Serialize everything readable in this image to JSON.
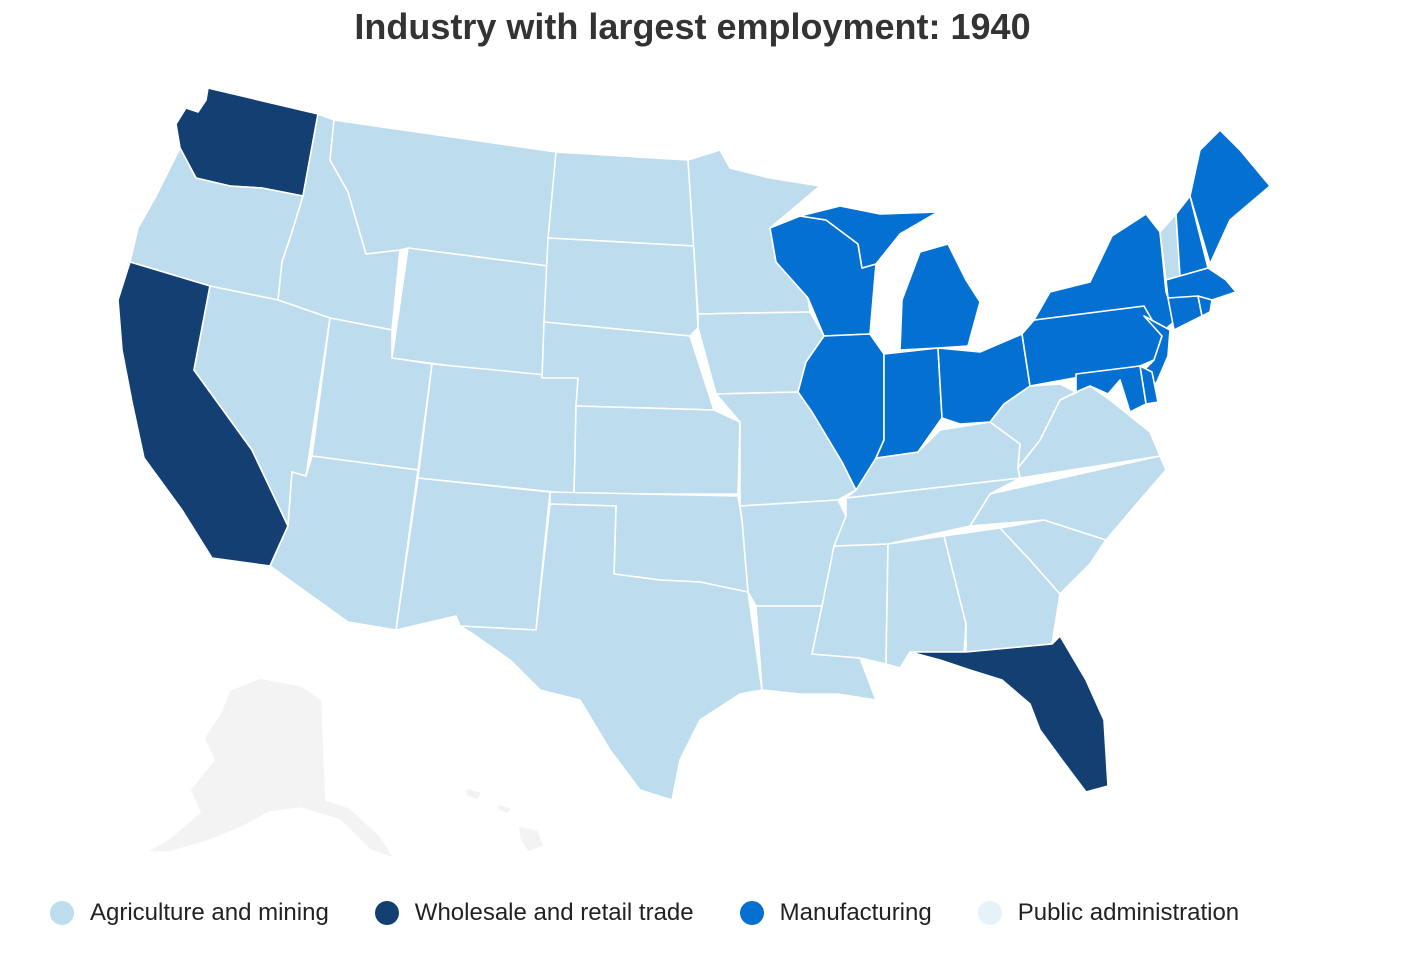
{
  "title": "Industry with largest employment: 1940",
  "colors": {
    "agriculture": "#bddcee",
    "trade": "#143f73",
    "manufacturing": "#0470d2",
    "public": "#e6f2f9",
    "no_data": "#f3f3f3"
  },
  "legend": [
    {
      "key": "agriculture",
      "label": "Agriculture and mining"
    },
    {
      "key": "trade",
      "label": "Wholesale and retail trade"
    },
    {
      "key": "manufacturing",
      "label": "Manufacturing"
    },
    {
      "key": "public",
      "label": "Public administration"
    }
  ],
  "states": {
    "WA": "trade",
    "CA": "trade",
    "FL": "trade",
    "OR": "agriculture",
    "ID": "agriculture",
    "MT": "agriculture",
    "WY": "agriculture",
    "NV": "agriculture",
    "UT": "agriculture",
    "CO": "agriculture",
    "AZ": "agriculture",
    "NM": "agriculture",
    "ND": "agriculture",
    "SD": "agriculture",
    "NE": "agriculture",
    "KS": "agriculture",
    "OK": "agriculture",
    "TX": "agriculture",
    "MN": "agriculture",
    "IA": "agriculture",
    "MO": "agriculture",
    "AR": "agriculture",
    "LA": "agriculture",
    "MS": "agriculture",
    "AL": "agriculture",
    "GA": "agriculture",
    "SC": "agriculture",
    "NC": "agriculture",
    "TN": "agriculture",
    "KY": "agriculture",
    "VA": "agriculture",
    "WV": "agriculture",
    "VT": "agriculture",
    "WI": "manufacturing",
    "MI": "manufacturing",
    "IL": "manufacturing",
    "IN": "manufacturing",
    "OH": "manufacturing",
    "PA": "manufacturing",
    "NY": "manufacturing",
    "NJ": "manufacturing",
    "DE": "manufacturing",
    "MD": "manufacturing",
    "CT": "manufacturing",
    "RI": "manufacturing",
    "MA": "manufacturing",
    "NH": "manufacturing",
    "ME": "manufacturing",
    "AK": "no_data",
    "HI": "no_data"
  }
}
